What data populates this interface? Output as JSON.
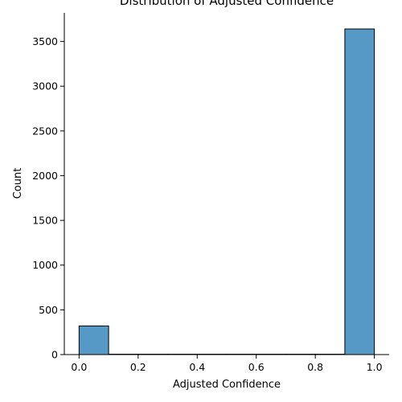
{
  "chart_data": {
    "type": "bar",
    "title": "Distribution of Adjusted Confidence",
    "xlabel": "Adjusted Confidence",
    "ylabel": "Count",
    "xlim": [
      -0.05,
      1.05
    ],
    "ylim": [
      0,
      3820
    ],
    "x_ticks": [
      0.0,
      0.2,
      0.4,
      0.6,
      0.8,
      1.0
    ],
    "x_tick_labels": [
      "0.0",
      "0.2",
      "0.4",
      "0.6",
      "0.8",
      "1.0"
    ],
    "y_ticks": [
      0,
      500,
      1000,
      1500,
      2000,
      2500,
      3000,
      3500
    ],
    "y_tick_labels": [
      "0",
      "500",
      "1000",
      "1500",
      "2000",
      "2500",
      "3000",
      "3500"
    ],
    "bins": [
      {
        "x_start": 0.0,
        "x_end": 0.1,
        "count": 320
      },
      {
        "x_start": 0.1,
        "x_end": 0.2,
        "count": 4
      },
      {
        "x_start": 0.2,
        "x_end": 0.3,
        "count": 4
      },
      {
        "x_start": 0.3,
        "x_end": 0.4,
        "count": 4
      },
      {
        "x_start": 0.4,
        "x_end": 0.5,
        "count": 4
      },
      {
        "x_start": 0.5,
        "x_end": 0.6,
        "count": 4
      },
      {
        "x_start": 0.6,
        "x_end": 0.7,
        "count": 4
      },
      {
        "x_start": 0.7,
        "x_end": 0.8,
        "count": 4
      },
      {
        "x_start": 0.8,
        "x_end": 0.9,
        "count": 4
      },
      {
        "x_start": 0.9,
        "x_end": 1.0,
        "count": 3640
      }
    ],
    "grid": false,
    "colors": {
      "bar_fill": "#5699c6",
      "bar_edge": "#000000",
      "axis": "#000000"
    }
  }
}
